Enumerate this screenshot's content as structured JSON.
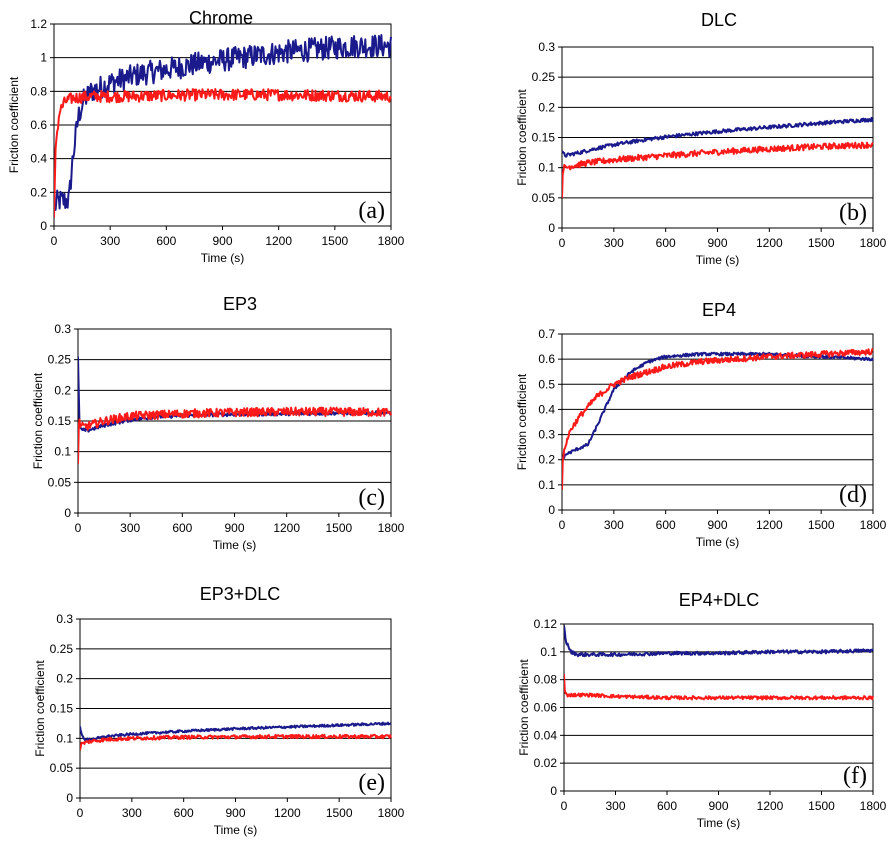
{
  "colors": {
    "blue": "#1a1a8c",
    "red": "#ff1a1a"
  },
  "chart_data": [
    {
      "id": "a",
      "type": "line",
      "title": "Chrome",
      "panel_label": "(a)",
      "xlabel": "Time (s)",
      "ylabel": "Friction coefficient",
      "xlim": [
        0,
        1800
      ],
      "ylim": [
        0,
        1.2
      ],
      "xticks": [
        0,
        300,
        600,
        900,
        1200,
        1500,
        1800
      ],
      "yticks": [
        0,
        0.2,
        0.4,
        0.6,
        0.8,
        1,
        1.2
      ],
      "ytick_labels": [
        "0",
        "0.2",
        "0.4",
        "0.6",
        "0.8",
        "1",
        "1.2"
      ],
      "series": [
        {
          "color": "blue",
          "noise": 0.07,
          "x": [
            0,
            15,
            30,
            80,
            100,
            130,
            160,
            200,
            300,
            450,
            600,
            800,
            1000,
            1200,
            1400,
            1600,
            1800
          ],
          "y": [
            0.1,
            0.14,
            0.15,
            0.15,
            0.4,
            0.65,
            0.75,
            0.8,
            0.85,
            0.9,
            0.93,
            0.97,
            1.0,
            1.03,
            1.05,
            1.07,
            1.07
          ]
        },
        {
          "color": "red",
          "noise": 0.035,
          "x": [
            0,
            10,
            30,
            60,
            100,
            200,
            400,
            800,
            1200,
            1800
          ],
          "y": [
            0.05,
            0.5,
            0.68,
            0.74,
            0.76,
            0.77,
            0.77,
            0.78,
            0.78,
            0.77
          ]
        }
      ]
    },
    {
      "id": "b",
      "type": "line",
      "title": "DLC",
      "panel_label": "(b)",
      "xlabel": "Time (s)",
      "ylabel": "Friction coefficient",
      "xlim": [
        0,
        1800
      ],
      "ylim": [
        0,
        0.3
      ],
      "xticks": [
        0,
        300,
        600,
        900,
        1200,
        1500,
        1800
      ],
      "yticks": [
        0,
        0.05,
        0.1,
        0.15,
        0.2,
        0.25,
        0.3
      ],
      "ytick_labels": [
        "0",
        "0.05",
        "0.1",
        "0.15",
        "0.2",
        "0.25",
        "0.3"
      ],
      "series": [
        {
          "color": "blue",
          "noise": 0.003,
          "x": [
            0,
            20,
            50,
            100,
            200,
            300,
            450,
            600,
            900,
            1200,
            1500,
            1800
          ],
          "y": [
            0.125,
            0.12,
            0.122,
            0.125,
            0.132,
            0.138,
            0.145,
            0.151,
            0.16,
            0.167,
            0.174,
            0.18
          ]
        },
        {
          "color": "red",
          "noise": 0.005,
          "x": [
            0,
            5,
            20,
            60,
            150,
            300,
            600,
            900,
            1200,
            1500,
            1800
          ],
          "y": [
            0.05,
            0.1,
            0.1,
            0.103,
            0.108,
            0.113,
            0.12,
            0.126,
            0.131,
            0.135,
            0.138
          ]
        }
      ]
    },
    {
      "id": "c",
      "type": "line",
      "title": "EP3",
      "panel_label": "(c)",
      "xlabel": "Time (s)",
      "ylabel": "Friction coefficient",
      "xlim": [
        0,
        1800
      ],
      "ylim": [
        0,
        0.3
      ],
      "xticks": [
        0,
        300,
        600,
        900,
        1200,
        1500,
        1800
      ],
      "yticks": [
        0,
        0.05,
        0.1,
        0.15,
        0.2,
        0.25,
        0.3
      ],
      "ytick_labels": [
        "0",
        "0.05",
        "0.1",
        "0.15",
        "0.2",
        "0.25",
        "0.3"
      ],
      "series": [
        {
          "color": "blue",
          "noise": 0.003,
          "x": [
            0,
            8,
            20,
            60,
            150,
            300,
            450,
            600,
            900,
            1200,
            1500,
            1800
          ],
          "y": [
            0.255,
            0.145,
            0.135,
            0.135,
            0.143,
            0.152,
            0.157,
            0.159,
            0.161,
            0.162,
            0.163,
            0.163
          ]
        },
        {
          "color": "red",
          "noise": 0.007,
          "x": [
            0,
            5,
            20,
            60,
            150,
            300,
            600,
            900,
            1200,
            1500,
            1800
          ],
          "y": [
            0.08,
            0.15,
            0.14,
            0.142,
            0.15,
            0.158,
            0.162,
            0.164,
            0.165,
            0.165,
            0.164
          ]
        }
      ]
    },
    {
      "id": "d",
      "type": "line",
      "title": "EP4",
      "panel_label": "(d)",
      "xlabel": "Time (s)",
      "ylabel": "Friction coefficient",
      "xlim": [
        0,
        1800
      ],
      "ylim": [
        0,
        0.7
      ],
      "xticks": [
        0,
        300,
        600,
        900,
        1200,
        1500,
        1800
      ],
      "yticks": [
        0,
        0.1,
        0.2,
        0.3,
        0.4,
        0.5,
        0.6,
        0.7
      ],
      "ytick_labels": [
        "0",
        "0.1",
        "0.2",
        "0.3",
        "0.4",
        "0.5",
        "0.6",
        "0.7"
      ],
      "series": [
        {
          "color": "blue",
          "noise": 0.006,
          "x": [
            0,
            20,
            80,
            150,
            200,
            300,
            400,
            500,
            600,
            800,
            1000,
            1200,
            1500,
            1800
          ],
          "y": [
            0.2,
            0.22,
            0.24,
            0.26,
            0.33,
            0.48,
            0.55,
            0.59,
            0.61,
            0.62,
            0.62,
            0.62,
            0.61,
            0.6
          ]
        },
        {
          "color": "red",
          "noise": 0.012,
          "x": [
            0,
            5,
            20,
            50,
            100,
            150,
            200,
            300,
            400,
            600,
            800,
            1000,
            1200,
            1500,
            1800
          ],
          "y": [
            0.08,
            0.2,
            0.26,
            0.32,
            0.37,
            0.41,
            0.45,
            0.5,
            0.53,
            0.57,
            0.59,
            0.6,
            0.61,
            0.62,
            0.63
          ]
        }
      ]
    },
    {
      "id": "e",
      "type": "line",
      "title": "EP3+DLC",
      "panel_label": "(e)",
      "xlabel": "Time (s)",
      "ylabel": "Friction coefficient",
      "xlim": [
        0,
        1800
      ],
      "ylim": [
        0,
        0.3
      ],
      "xticks": [
        0,
        300,
        600,
        900,
        1200,
        1500,
        1800
      ],
      "yticks": [
        0,
        0.05,
        0.1,
        0.15,
        0.2,
        0.25,
        0.3
      ],
      "ytick_labels": [
        "0",
        "0.05",
        "0.1",
        "0.15",
        "0.2",
        "0.25",
        "0.3"
      ],
      "series": [
        {
          "color": "blue",
          "noise": 0.002,
          "x": [
            0,
            10,
            30,
            60,
            150,
            300,
            600,
            900,
            1200,
            1500,
            1800
          ],
          "y": [
            0.12,
            0.105,
            0.098,
            0.098,
            0.103,
            0.107,
            0.112,
            0.116,
            0.119,
            0.122,
            0.125
          ]
        },
        {
          "color": "red",
          "noise": 0.003,
          "x": [
            0,
            5,
            20,
            60,
            150,
            300,
            600,
            1200,
            1800
          ],
          "y": [
            0.08,
            0.09,
            0.092,
            0.095,
            0.098,
            0.1,
            0.102,
            0.103,
            0.103
          ]
        }
      ]
    },
    {
      "id": "f",
      "type": "line",
      "title": "EP4+DLC",
      "panel_label": "(f)",
      "xlabel": "Time (s)",
      "ylabel": "Friction coefficient",
      "xlim": [
        0,
        1800
      ],
      "ylim": [
        0,
        0.12
      ],
      "xticks": [
        0,
        300,
        600,
        900,
        1200,
        1500,
        1800
      ],
      "yticks": [
        0,
        0.02,
        0.04,
        0.06,
        0.08,
        0.1,
        0.12
      ],
      "ytick_labels": [
        "0",
        "0.02",
        "0.04",
        "0.06",
        "0.08",
        "0.1",
        "0.12"
      ],
      "series": [
        {
          "color": "blue",
          "noise": 0.0012,
          "x": [
            0,
            10,
            40,
            80,
            150,
            300,
            600,
            900,
            1200,
            1500,
            1800
          ],
          "y": [
            0.119,
            0.108,
            0.1,
            0.098,
            0.098,
            0.098,
            0.099,
            0.099,
            0.1,
            0.1,
            0.101
          ]
        },
        {
          "color": "red",
          "noise": 0.0012,
          "x": [
            0,
            5,
            20,
            60,
            150,
            300,
            600,
            900,
            1200,
            1500,
            1800
          ],
          "y": [
            0.084,
            0.07,
            0.069,
            0.069,
            0.069,
            0.068,
            0.067,
            0.067,
            0.067,
            0.067,
            0.067
          ]
        }
      ]
    }
  ]
}
